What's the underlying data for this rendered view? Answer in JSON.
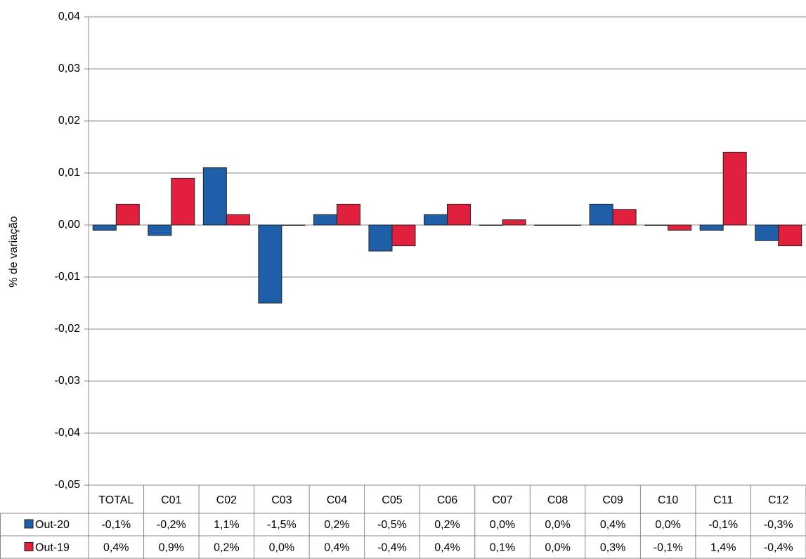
{
  "chart_data": {
    "type": "bar",
    "y_label": "% de variação",
    "categories": [
      "TOTAL",
      "C01",
      "C02",
      "C03",
      "C04",
      "C05",
      "C06",
      "C07",
      "C08",
      "C09",
      "C10",
      "C11",
      "C12"
    ],
    "series": [
      {
        "name": "Out-20",
        "color": "#1f5fa8",
        "values": [
          -0.001,
          -0.002,
          0.011,
          -0.015,
          0.002,
          -0.005,
          0.002,
          0.0,
          0.0,
          0.004,
          0.0,
          -0.001,
          -0.003
        ],
        "value_labels": [
          "-0,1%",
          "-0,2%",
          "1,1%",
          "-1,5%",
          "0,2%",
          "-0,5%",
          "0,2%",
          "0,0%",
          "0,0%",
          "0,4%",
          "0,0%",
          "-0,1%",
          "-0,3%"
        ]
      },
      {
        "name": "Out-19",
        "color": "#e0203c",
        "values": [
          0.004,
          0.009,
          0.002,
          0.0,
          0.004,
          -0.004,
          0.004,
          0.001,
          0.0,
          0.003,
          -0.001,
          0.014,
          -0.004
        ],
        "value_labels": [
          "0,4%",
          "0,9%",
          "0,2%",
          "0,0%",
          "0,4%",
          "-0,4%",
          "0,4%",
          "0,1%",
          "0,0%",
          "0,3%",
          "-0,1%",
          "1,4%",
          "-0,4%"
        ]
      }
    ],
    "ylim": [
      -0.05,
      0.04
    ],
    "yticks": [
      {
        "value": -0.05,
        "label": "-0,05"
      },
      {
        "value": -0.04,
        "label": "-0,04"
      },
      {
        "value": -0.03,
        "label": "-0,03"
      },
      {
        "value": -0.02,
        "label": "-0,02"
      },
      {
        "value": -0.01,
        "label": "-0,01"
      },
      {
        "value": 0,
        "label": "0,00"
      },
      {
        "value": 0.01,
        "label": "0,01"
      },
      {
        "value": 0.02,
        "label": "0,02"
      },
      {
        "value": 0.03,
        "label": "0,03"
      },
      {
        "value": 0.04,
        "label": "0,04"
      }
    ],
    "grid": true
  }
}
